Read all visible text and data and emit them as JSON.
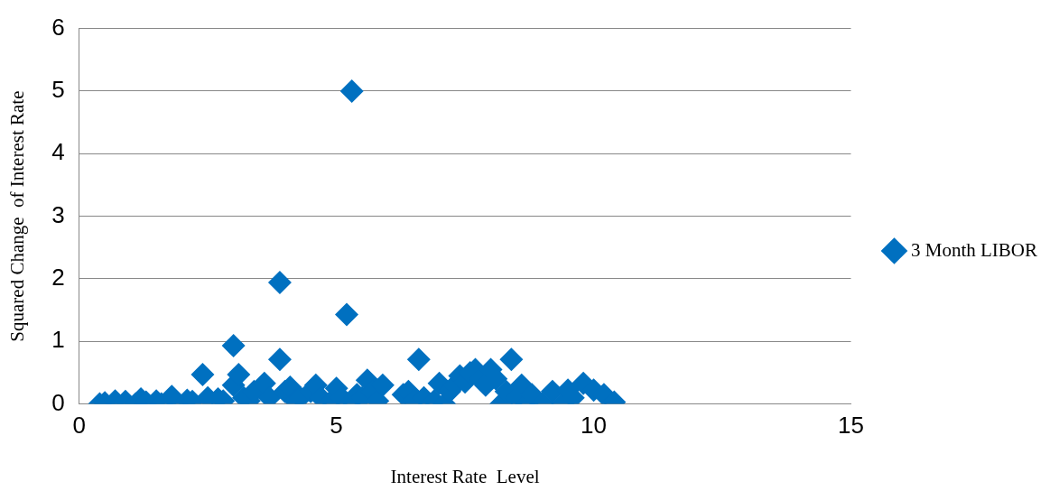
{
  "chart_data": {
    "type": "scatter",
    "xlabel": "Interest Rate  Level",
    "ylabel": "Squared Change  of Interest Rate",
    "xlim": [
      0,
      15
    ],
    "xticks": [
      0,
      5,
      10,
      15
    ],
    "ylim": [
      0,
      6
    ],
    "yticks": [
      0,
      1,
      2,
      3,
      4,
      5,
      6
    ],
    "grid": "y",
    "legend": "right",
    "marker": "diamond",
    "series": [
      {
        "name": "3 Month LIBOR",
        "color": "#0070c0",
        "x": [
          0.4,
          0.5,
          0.7,
          0.9,
          1.1,
          1.2,
          1.3,
          1.5,
          1.6,
          1.8,
          1.9,
          2.1,
          2.2,
          2.4,
          2.5,
          2.7,
          2.8,
          3.0,
          3.0,
          3.1,
          3.2,
          3.3,
          3.4,
          3.6,
          3.7,
          3.9,
          3.9,
          4.0,
          4.1,
          4.2,
          4.3,
          4.5,
          4.6,
          4.7,
          4.9,
          5.0,
          5.1,
          5.2,
          5.3,
          5.3,
          5.4,
          5.5,
          5.6,
          5.7,
          5.8,
          5.9,
          6.3,
          6.4,
          6.5,
          6.6,
          6.7,
          6.9,
          7.0,
          7.1,
          7.2,
          7.3,
          7.4,
          7.5,
          7.6,
          7.7,
          7.8,
          7.9,
          8.0,
          8.1,
          8.2,
          8.3,
          8.4,
          8.5,
          8.6,
          8.7,
          8.8,
          9.0,
          9.2,
          9.4,
          9.5,
          9.6,
          9.8,
          10.0,
          10.2,
          10.4
        ],
        "values": [
          0.0,
          0.02,
          0.05,
          0.04,
          0.0,
          0.08,
          0.03,
          0.05,
          0.0,
          0.12,
          0.02,
          0.06,
          0.04,
          0.47,
          0.1,
          0.08,
          0.05,
          0.93,
          0.3,
          0.47,
          0.1,
          0.05,
          0.2,
          0.33,
          0.1,
          1.94,
          0.71,
          0.2,
          0.27,
          0.05,
          0.1,
          0.2,
          0.3,
          0.1,
          0.05,
          0.25,
          0.1,
          1.43,
          5.0,
          0.05,
          0.15,
          0.1,
          0.38,
          0.2,
          0.05,
          0.3,
          0.15,
          0.2,
          0.05,
          0.71,
          0.1,
          0.05,
          0.33,
          0.0,
          0.2,
          0.3,
          0.45,
          0.35,
          0.5,
          0.55,
          0.4,
          0.3,
          0.55,
          0.4,
          0.0,
          0.2,
          0.71,
          0.1,
          0.3,
          0.0,
          0.15,
          0.0,
          0.2,
          0.0,
          0.22,
          0.1,
          0.33,
          0.22,
          0.15,
          0.03
        ]
      }
    ]
  }
}
